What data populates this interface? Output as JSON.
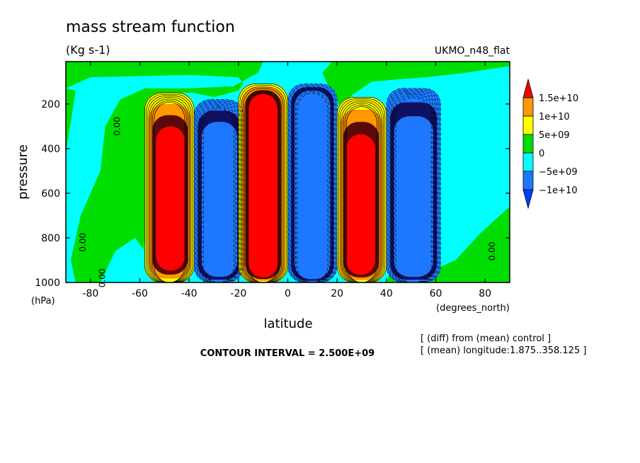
{
  "chart_data": {
    "type": "contour",
    "title": "mass stream function",
    "units": "(Kg s-1)",
    "run_label": "UKMO_n48_flat",
    "xlabel": "latitude",
    "ylabel": "pressure",
    "x_unit": "(degrees_north)",
    "y_unit": "(hPa)",
    "xlim": [
      -90,
      90
    ],
    "ylim": [
      1000,
      10
    ],
    "y_reversed": true,
    "x_ticks": [
      "-80",
      "-60",
      "-40",
      "-20",
      "0",
      "20",
      "40",
      "60",
      "80"
    ],
    "y_ticks": [
      "200",
      "400",
      "600",
      "800",
      "1000"
    ],
    "contour_interval_text": "CONTOUR INTERVAL = 2.500E+09",
    "notes": [
      "[ (diff) from (mean) control ]",
      "[ (mean) longitude:1.875..358.125 ]"
    ],
    "legend": {
      "labels": [
        "1.5e+10",
        "1e+10",
        "5e+09",
        "0",
        "−5e+09",
        "−1e+10"
      ],
      "colors": [
        "#ff0000",
        "#ff9900",
        "#ffff00",
        "#00dd00",
        "#00ffff",
        "#1e78ff",
        "#0040ff",
        "#e01010"
      ]
    },
    "contour_labels": [
      "0.00",
      "0.00",
      "0.00",
      "0.00"
    ],
    "cells": [
      {
        "sign": "positive",
        "lat_range": [
          -58,
          -38
        ],
        "p_range": [
          150,
          1000
        ],
        "core_lat": -47,
        "core_p_range": [
          350,
          930
        ]
      },
      {
        "sign": "negative",
        "lat_range": [
          -38,
          -18
        ],
        "p_range": [
          180,
          1000
        ],
        "core_lat": -27,
        "core_p_range": [
          380,
          950
        ]
      },
      {
        "sign": "positive",
        "lat_range": [
          -20,
          0
        ],
        "p_range": [
          110,
          1000
        ],
        "core_lat": -10,
        "core_p_range": [
          170,
          970
        ]
      },
      {
        "sign": "negative",
        "lat_range": [
          0,
          20
        ],
        "p_range": [
          110,
          1000
        ],
        "core_lat": 10,
        "core_p_range": [
          170,
          970
        ]
      },
      {
        "sign": "positive",
        "lat_range": [
          20,
          40
        ],
        "p_range": [
          170,
          1000
        ],
        "core_lat": 29,
        "core_p_range": [
          390,
          955
        ]
      },
      {
        "sign": "negative",
        "lat_range": [
          40,
          62
        ],
        "p_range": [
          130,
          1000
        ],
        "core_lat": 51,
        "core_p_range": [
          380,
          950
        ]
      }
    ]
  }
}
